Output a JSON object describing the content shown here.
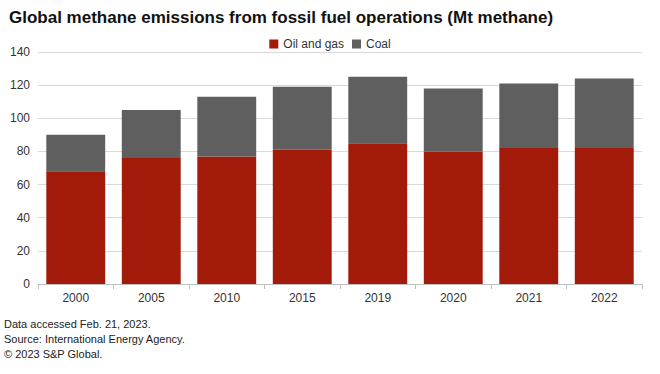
{
  "chart_data": {
    "type": "bar",
    "title": "Global methane emissions from fossil fuel operations (Mt methane)",
    "categories": [
      "2000",
      "2005",
      "2010",
      "2015",
      "2019",
      "2020",
      "2021",
      "2022"
    ],
    "series": [
      {
        "name": "Oil and gas",
        "color": "#a21a0a",
        "values": [
          68,
          76,
          77,
          81,
          85,
          80,
          82,
          82
        ]
      },
      {
        "name": "Coal",
        "color": "#5f5f5f",
        "values": [
          22,
          29,
          36,
          38,
          40,
          38,
          39,
          42
        ]
      }
    ],
    "stacked": true,
    "legend": "top",
    "ylim": [
      0,
      140
    ],
    "yticks": [
      0,
      20,
      40,
      60,
      80,
      100,
      120,
      140
    ],
    "grid": true,
    "annotations": [
      "Data accessed Feb. 21, 2023.",
      "Source: International Energy Agency.",
      "© 2023 S&P Global."
    ]
  }
}
